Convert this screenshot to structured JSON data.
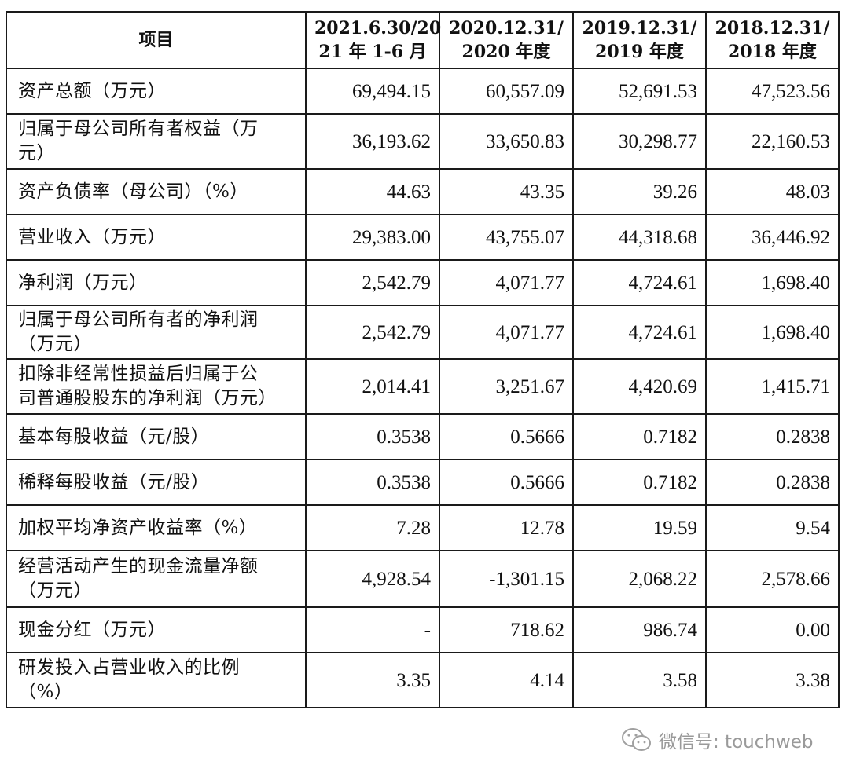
{
  "table": {
    "header": {
      "item": "项目",
      "periods": [
        [
          "2021.6.30/20",
          "21 年 1-6 月"
        ],
        [
          "2020.12.31/",
          "2020 年度"
        ],
        [
          "2019.12.31/",
          "2019 年度"
        ],
        [
          "2018.12.31/",
          "2018 年度"
        ]
      ]
    },
    "rows": [
      {
        "label": [
          "资产总额（万元）"
        ],
        "values": [
          "69,494.15",
          "60,557.09",
          "52,691.53",
          "47,523.56"
        ]
      },
      {
        "label": [
          "归属于母公司所有者权益（万",
          "元）"
        ],
        "values": [
          "36,193.62",
          "33,650.83",
          "30,298.77",
          "22,160.53"
        ]
      },
      {
        "label": [
          "资产负债率（母公司）（%）"
        ],
        "values": [
          "44.63",
          "43.35",
          "39.26",
          "48.03"
        ]
      },
      {
        "label": [
          "营业收入（万元）"
        ],
        "values": [
          "29,383.00",
          "43,755.07",
          "44,318.68",
          "36,446.92"
        ]
      },
      {
        "label": [
          "净利润（万元）"
        ],
        "values": [
          "2,542.79",
          "4,071.77",
          "4,724.61",
          "1,698.40"
        ]
      },
      {
        "label": [
          "归属于母公司所有者的净利润",
          "（万元）"
        ],
        "values": [
          "2,542.79",
          "4,071.77",
          "4,724.61",
          "1,698.40"
        ]
      },
      {
        "label": [
          "扣除非经常性损益后归属于公",
          "司普通股股东的净利润（万元）"
        ],
        "values": [
          "2,014.41",
          "3,251.67",
          "4,420.69",
          "1,415.71"
        ]
      },
      {
        "label": [
          "基本每股收益（元/股）"
        ],
        "values": [
          "0.3538",
          "0.5666",
          "0.7182",
          "0.2838"
        ]
      },
      {
        "label": [
          "稀释每股收益（元/股）"
        ],
        "values": [
          "0.3538",
          "0.5666",
          "0.7182",
          "0.2838"
        ]
      },
      {
        "label": [
          "加权平均净资产收益率（%）"
        ],
        "values": [
          "7.28",
          "12.78",
          "19.59",
          "9.54"
        ]
      },
      {
        "label": [
          "经营活动产生的现金流量净额",
          "（万元）"
        ],
        "values": [
          "4,928.54",
          "-1,301.15",
          "2,068.22",
          "2,578.66"
        ]
      },
      {
        "label": [
          "现金分红（万元）"
        ],
        "values": [
          "-",
          "718.62",
          "986.74",
          "0.00"
        ]
      },
      {
        "label": [
          "研发投入占营业收入的比例",
          "（%）"
        ],
        "values": [
          "3.35",
          "4.14",
          "3.58",
          "3.38"
        ]
      }
    ]
  },
  "watermark": {
    "icon": "wechat-icon",
    "text": "微信号: touchweb"
  }
}
